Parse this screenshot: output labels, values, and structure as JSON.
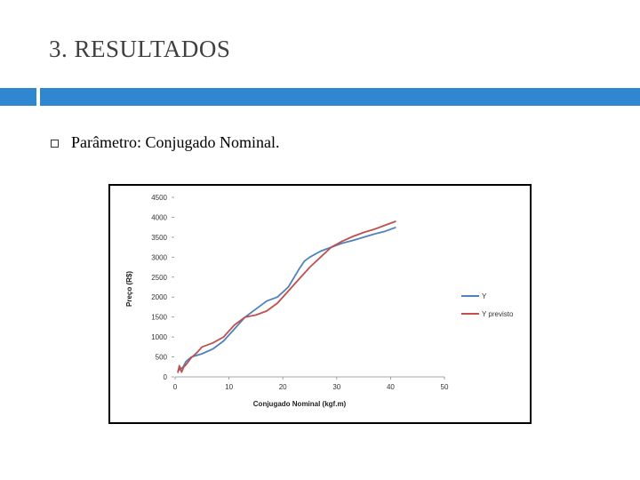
{
  "slide": {
    "title": "3. RESULTADOS",
    "bullet_text": "Parâmetro: Conjugado Nominal."
  },
  "colors": {
    "accent_bar": "#2e87d0",
    "series_y": "#4f81bd",
    "series_y_previsto": "#c0504d"
  },
  "chart_data": {
    "type": "line",
    "title": "",
    "xlabel": "Conjugado Nominal (kgf.m)",
    "ylabel": "Preço (R$)",
    "xlim": [
      0,
      50
    ],
    "ylim": [
      0,
      4500
    ],
    "x_ticks": [
      0,
      10,
      20,
      30,
      40,
      50
    ],
    "y_ticks": [
      0,
      500,
      1000,
      1500,
      2000,
      2500,
      3000,
      3500,
      4000,
      4500
    ],
    "grid": false,
    "legend_position": "right",
    "series": [
      {
        "name": "Y",
        "color": "#4f81bd",
        "x": [
          0.5,
          1,
          1.5,
          2,
          3,
          5,
          7,
          9,
          11,
          13,
          15,
          17,
          19,
          21,
          23,
          24,
          25,
          27,
          29,
          31,
          33,
          35,
          37,
          39,
          41
        ],
        "y": [
          150,
          200,
          250,
          380,
          500,
          580,
          700,
          900,
          1200,
          1500,
          1700,
          1900,
          2000,
          2250,
          2700,
          2900,
          3000,
          3150,
          3250,
          3350,
          3420,
          3500,
          3580,
          3650,
          3750
        ]
      },
      {
        "name": "Y previsto",
        "color": "#c0504d",
        "x": [
          0.5,
          0.8,
          1.2,
          1.6,
          2,
          3,
          4,
          5,
          7,
          9,
          11,
          13,
          15,
          17,
          19,
          21,
          23,
          25,
          27,
          29,
          31,
          33,
          35,
          37,
          39,
          41
        ],
        "y": [
          100,
          280,
          120,
          250,
          300,
          480,
          600,
          750,
          850,
          1000,
          1300,
          1500,
          1550,
          1650,
          1850,
          2150,
          2450,
          2750,
          3000,
          3250,
          3400,
          3520,
          3620,
          3700,
          3800,
          3900
        ]
      }
    ]
  }
}
